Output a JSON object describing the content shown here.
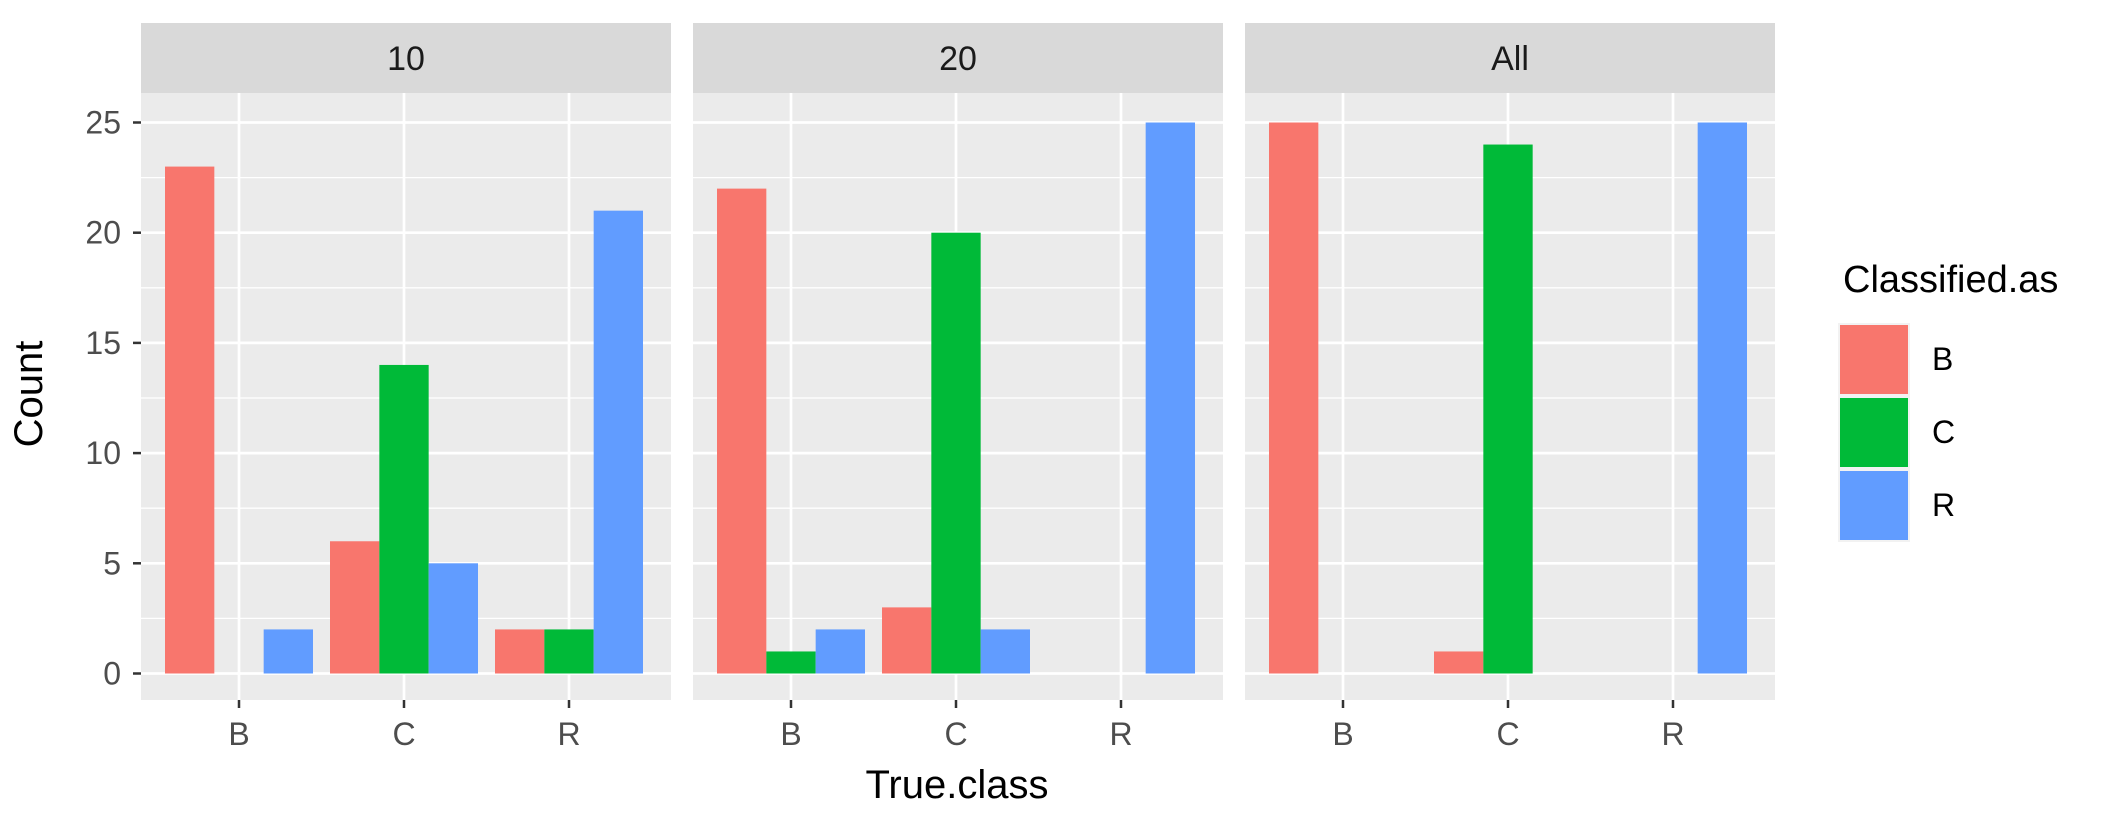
{
  "chart_data": {
    "type": "bar",
    "facet_labels": [
      "10",
      "20",
      "All"
    ],
    "categories": [
      "B",
      "C",
      "R"
    ],
    "xlabel": "True.class",
    "ylabel": "Count",
    "ylim": [
      0,
      25
    ],
    "yticks": [
      "0",
      "5",
      "10",
      "15",
      "20",
      "25"
    ],
    "legend": {
      "title": "Classified.as",
      "position": "right",
      "entries": [
        "B",
        "C",
        "R"
      ]
    },
    "colors": {
      "B": "#F8766D",
      "C": "#00BA38",
      "R": "#619CFF"
    },
    "panels": [
      {
        "facet": "10",
        "series": [
          {
            "name": "B",
            "values": [
              23,
              6,
              2
            ]
          },
          {
            "name": "C",
            "values": [
              0,
              14,
              2
            ]
          },
          {
            "name": "R",
            "values": [
              2,
              5,
              21
            ]
          }
        ]
      },
      {
        "facet": "20",
        "series": [
          {
            "name": "B",
            "values": [
              22,
              3,
              0
            ]
          },
          {
            "name": "C",
            "values": [
              1,
              20,
              0
            ]
          },
          {
            "name": "R",
            "values": [
              2,
              2,
              25
            ]
          }
        ]
      },
      {
        "facet": "All",
        "series": [
          {
            "name": "B",
            "values": [
              25,
              1,
              0
            ]
          },
          {
            "name": "C",
            "values": [
              0,
              24,
              0
            ]
          },
          {
            "name": "R",
            "values": [
              0,
              0,
              25
            ]
          }
        ]
      }
    ]
  }
}
